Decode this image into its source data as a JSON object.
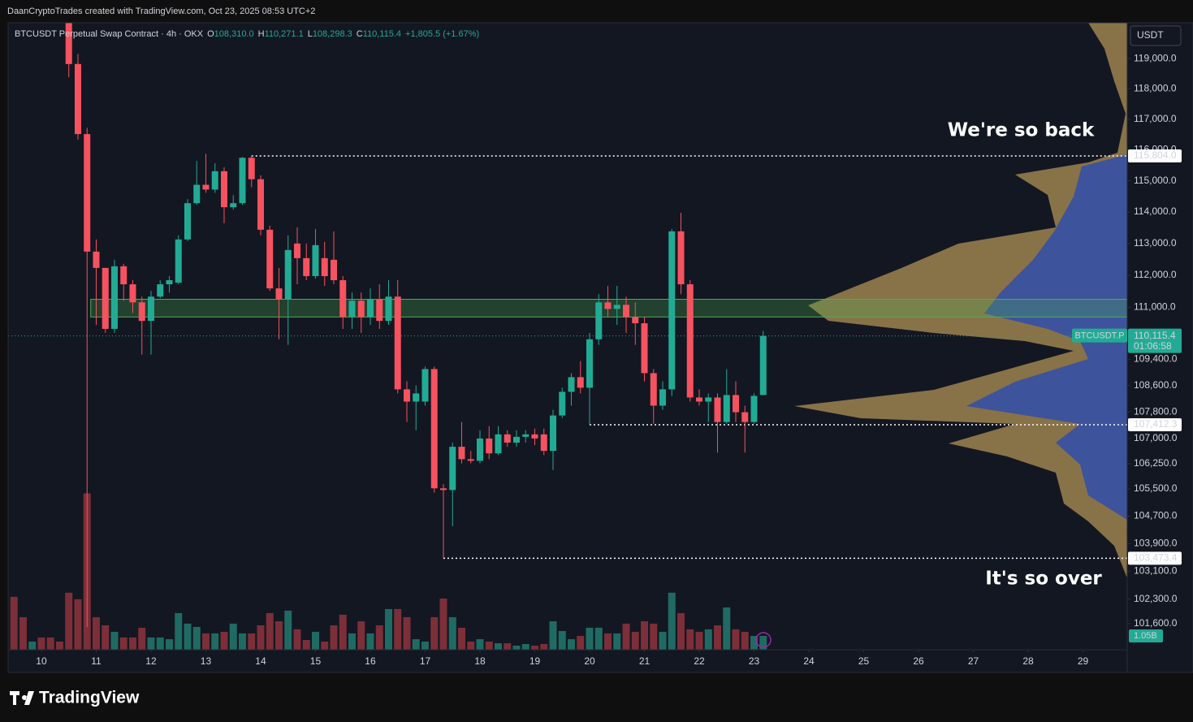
{
  "chart_data": {
    "type": "candlestick",
    "header": "DaanCryptoTrades created with TradingView.com, Oct 23, 2025 08:53 UTC+2",
    "symbol": "BTCUSDT Perpetual Swap Contract · 4h · OKX",
    "ohlc": [
      {
        "key": "O",
        "text": "108,310.0"
      },
      {
        "key": "H",
        "text": "110,271.1"
      },
      {
        "key": "L",
        "text": "108,298.3"
      },
      {
        "key": "C",
        "text": "110,115.4"
      }
    ],
    "change": "+1,805.5 (+1.67%)",
    "currency": "USDT",
    "logo": "TradingView",
    "annotations": [
      "We're so back",
      "It's so over"
    ],
    "log_scale": true,
    "up_color": "#22ab94",
    "down_color": "#f7525f",
    "volume_up_color": "#1f6b63",
    "volume_down_color": "#7c2f38",
    "ylim": [
      100860,
      120200
    ],
    "yticks": [
      {
        "value": 119000,
        "label": "119,000.0"
      },
      {
        "value": 118000,
        "label": "118,000.0"
      },
      {
        "value": 117000,
        "label": "117,000.0"
      },
      {
        "value": 116000,
        "label": "116,000.0"
      },
      {
        "value": 115000,
        "label": "115,000.0"
      },
      {
        "value": 114000,
        "label": "114,000.0"
      },
      {
        "value": 113000,
        "label": "113,000.0"
      },
      {
        "value": 112000,
        "label": "112,000.0"
      },
      {
        "value": 111000,
        "label": "111,000.0"
      },
      {
        "value": 109400,
        "label": "109,400.0"
      },
      {
        "value": 108600,
        "label": "108,600.0"
      },
      {
        "value": 107800,
        "label": "107,800.0"
      },
      {
        "value": 107000,
        "label": "107,000.0"
      },
      {
        "value": 106250,
        "label": "106,250.0"
      },
      {
        "value": 105500,
        "label": "105,500.0"
      },
      {
        "value": 104700,
        "label": "104,700.0"
      },
      {
        "value": 103900,
        "label": "103,900.0"
      },
      {
        "value": 103100,
        "label": "103,100.0"
      },
      {
        "value": 102300,
        "label": "102,300.0"
      },
      {
        "value": 101600,
        "label": "101,600.0"
      }
    ],
    "xlim": [
      9.393,
      29.807
    ],
    "xticks": [
      10,
      11,
      12,
      13,
      14,
      15,
      16,
      17,
      18,
      19,
      20,
      21,
      22,
      23,
      24,
      25,
      26,
      27,
      28,
      29
    ],
    "zone": {
      "from": 110700,
      "to": 111250,
      "x_start": 10.9
    },
    "levels": [
      {
        "value": 115804.0,
        "label": "115,804.0",
        "x_start": 13.8333
      },
      {
        "value": 107412.3,
        "label": "107,412.3",
        "x_start": 20
      },
      {
        "value": 103473.4,
        "label": "103,473.4",
        "x_start": 17.3333
      }
    ],
    "last_price": {
      "value": 110115.4,
      "label": "110,115.4",
      "symbol": "BTCUSDT.P",
      "countdown": "01:06:58"
    },
    "x": [
      10.5,
      10.6667,
      10.8333,
      11,
      11.1667,
      11.3333,
      11.5,
      11.6667,
      11.8333,
      12,
      12.1667,
      12.3333,
      12.5,
      12.6667,
      12.8333,
      13,
      13.1667,
      13.3333,
      13.5,
      13.6667,
      13.8333,
      14,
      14.1667,
      14.3333,
      14.5,
      14.6667,
      14.8333,
      15,
      15.1667,
      15.3333,
      15.5,
      15.6667,
      15.8333,
      16,
      16.1667,
      16.3333,
      16.5,
      16.6667,
      16.8333,
      17,
      17.1667,
      17.3333,
      17.5,
      17.6667,
      17.8333,
      18,
      18.1667,
      18.3333,
      18.5,
      18.6667,
      18.8333,
      19,
      19.1667,
      19.3333,
      19.5,
      19.6667,
      19.8333,
      20,
      20.1667,
      20.3333,
      20.5,
      20.6667,
      20.8333,
      21,
      21.1667,
      21.3333,
      21.5,
      21.6667,
      21.8333,
      22,
      22.1667,
      22.3333,
      22.5,
      22.6667,
      22.8333,
      23,
      23.1667
    ],
    "open": [
      120500,
      118820,
      116513,
      112744,
      112231,
      110333,
      112282,
      111718,
      111154,
      110580,
      111333,
      111718,
      111769,
      113128,
      114282,
      114872,
      114718,
      115308,
      114154,
      114282,
      115744,
      115051,
      113436,
      111590,
      111256,
      113000,
      112538,
      111974,
      112538,
      112487,
      111846,
      110704,
      111205,
      110704,
      111256,
      110580,
      111333,
      108482,
      108111,
      108111,
      109099,
      105519,
      105469,
      106753,
      106383,
      106334,
      107000,
      106556,
      107124,
      106877,
      107050,
      107124,
      107124,
      106630,
      107691,
      108407,
      108852,
      108531,
      110012,
      111154,
      110951,
      111077,
      110704,
      110506,
      108975,
      107988,
      108482,
      113385,
      111718,
      108235,
      108111,
      108235,
      107494,
      108309,
      107790,
      107494,
      108310.0
    ],
    "high": [
      121000,
      119154,
      116718,
      113128,
      112231,
      112487,
      112359,
      111846,
      111333,
      111513,
      111846,
      111974,
      113256,
      114410,
      115641,
      115872,
      115564,
      115436,
      114538,
      115769,
      115804,
      115179,
      113564,
      112231,
      113256,
      113513,
      113000,
      113462,
      113051,
      113385,
      111974,
      111462,
      111462,
      111590,
      111718,
      111846,
      111846,
      108728,
      108605,
      109173,
      109173,
      105642,
      106877,
      107494,
      106630,
      107247,
      107370,
      107370,
      107247,
      107247,
      107247,
      107296,
      107296,
      107864,
      108531,
      108975,
      109346,
      110210,
      111410,
      111667,
      111667,
      111333,
      111154,
      110704,
      109099,
      108728,
      113462,
      113974,
      111846,
      108482,
      108358,
      108358,
      109099,
      108728,
      107988,
      108358,
      110271.1
    ],
    "low": [
      118385,
      116333,
      101500,
      110457,
      110210,
      110210,
      111205,
      110827,
      109543,
      109543,
      111282,
      111462,
      111718,
      113077,
      114231,
      114615,
      114615,
      113641,
      114077,
      114231,
      114795,
      113256,
      111513,
      110012,
      109840,
      111718,
      111846,
      111897,
      111667,
      111718,
      110333,
      110333,
      110210,
      110457,
      110333,
      110457,
      108358,
      107494,
      107247,
      107988,
      105395,
      103473.4,
      104407,
      106259,
      106259,
      106259,
      106383,
      106506,
      106753,
      106753,
      106877,
      106802,
      106506,
      106062,
      107617,
      107988,
      108358,
      107412.3,
      109840,
      110704,
      110457,
      110210,
      109840,
      108728,
      107444,
      107864,
      108284,
      111410,
      108111,
      107988,
      107494,
      106580,
      107444,
      107494,
      106580,
      107444,
      108298.3
    ],
    "close": [
      118820,
      116513,
      112744,
      112231,
      110333,
      112282,
      111718,
      111154,
      110580,
      111333,
      111718,
      111846,
      113128,
      114282,
      114872,
      114718,
      115308,
      114154,
      114282,
      115744,
      115051,
      113436,
      111590,
      111256,
      112795,
      112538,
      111974,
      112949,
      111974,
      111846,
      110704,
      111205,
      110704,
      111256,
      110580,
      111333,
      108482,
      108111,
      108358,
      109099,
      105519,
      105469,
      106753,
      106383,
      106334,
      107000,
      106556,
      107124,
      106877,
      107050,
      107124,
      107000,
      106630,
      107691,
      108407,
      108852,
      108531,
      110012,
      111154,
      110951,
      111077,
      110704,
      110506,
      108975,
      107988,
      108482,
      113385,
      111718,
      108235,
      108111,
      108235,
      107494,
      108309,
      107790,
      107494,
      108284,
      110115.4
    ],
    "volume": {
      "last_label": "1.05B",
      "ylim": [
        0,
        18.5
      ],
      "x": [
        9.5,
        9.6667,
        9.8333,
        10,
        10.1667,
        10.3333,
        10.5,
        10.6667,
        10.8333,
        11,
        11.1667,
        11.3333,
        11.5,
        11.6667,
        11.8333,
        12,
        12.1667,
        12.3333,
        12.5,
        12.6667,
        12.8333,
        13,
        13.1667,
        13.3333,
        13.5,
        13.6667,
        13.8333,
        14,
        14.1667,
        14.3333,
        14.5,
        14.6667,
        14.8333,
        15,
        15.1667,
        15.3333,
        15.5,
        15.6667,
        15.8333,
        16,
        16.1667,
        16.3333,
        16.5,
        16.6667,
        16.8333,
        17,
        17.1667,
        17.3333,
        17.5,
        17.6667,
        17.8333,
        18,
        18.1667,
        18.3333,
        18.5,
        18.6667,
        18.8333,
        19,
        19.1667,
        19.3333,
        19.5,
        19.6667,
        19.8333,
        20,
        20.1667,
        20.3333,
        20.5,
        20.6667,
        20.8333,
        21,
        21.1667,
        21.3333,
        21.5,
        21.6667,
        21.8333,
        22,
        22.1667,
        22.3333,
        22.5,
        22.6667,
        22.8333,
        23,
        23.1667
      ],
      "values": [
        4.02,
        2.47,
        0.62,
        0.93,
        0.93,
        0.62,
        4.33,
        3.83,
        11.87,
        2.47,
        1.85,
        1.36,
        0.93,
        0.93,
        1.67,
        0.93,
        0.93,
        0.8,
        2.78,
        1.98,
        1.73,
        1.24,
        1.24,
        1.36,
        1.98,
        1.24,
        1.24,
        1.85,
        2.78,
        2.16,
        2.97,
        1.55,
        0.74,
        1.36,
        0.62,
        1.85,
        2.66,
        1.24,
        2.16,
        1.24,
        1.85,
        3.09,
        3.09,
        2.47,
        0.8,
        0.62,
        2.47,
        3.89,
        2.47,
        1.67,
        0.62,
        0.8,
        0.62,
        0.49,
        0.49,
        0.31,
        0.43,
        0.31,
        0.43,
        2.16,
        1.42,
        0.8,
        1.05,
        1.67,
        1.67,
        1.24,
        1.24,
        1.98,
        1.36,
        2.16,
        1.98,
        1.36,
        4.33,
        2.78,
        1.55,
        1.36,
        1.55,
        1.85,
        3.21,
        1.55,
        1.36,
        1.05,
        1.05
      ],
      "up": [
        false,
        false,
        true,
        false,
        false,
        false,
        false,
        false,
        false,
        false,
        false,
        true,
        false,
        false,
        false,
        true,
        true,
        true,
        true,
        true,
        true,
        false,
        true,
        false,
        true,
        true,
        false,
        false,
        false,
        false,
        true,
        false,
        false,
        true,
        false,
        false,
        false,
        true,
        false,
        true,
        false,
        true,
        false,
        false,
        true,
        true,
        false,
        false,
        true,
        false,
        false,
        true,
        false,
        true,
        false,
        true,
        true,
        false,
        false,
        true,
        true,
        true,
        false,
        true,
        true,
        false,
        true,
        false,
        false,
        false,
        false,
        true,
        true,
        false,
        false,
        false,
        true,
        false,
        true,
        false,
        false,
        true,
        true
      ]
    }
  }
}
